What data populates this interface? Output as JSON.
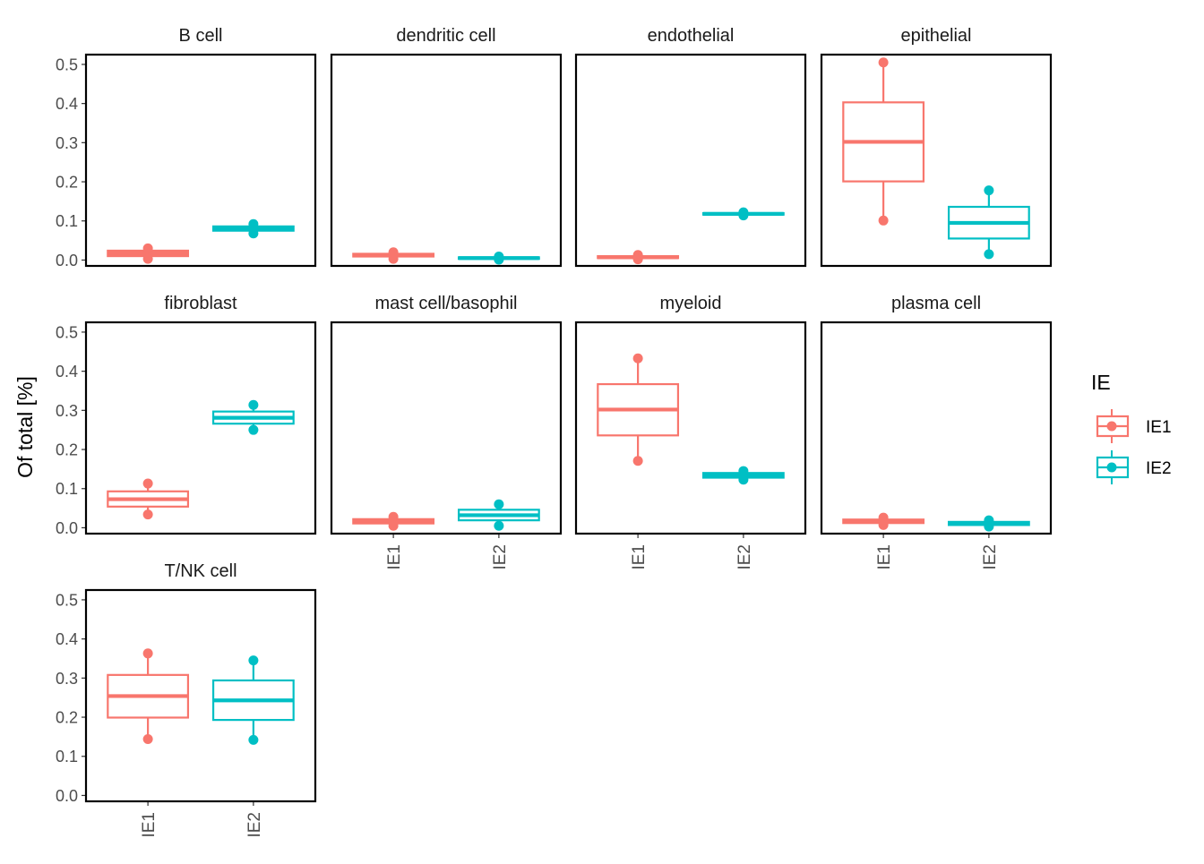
{
  "chart_data": {
    "type": "box",
    "ylabel": "Of total [%]",
    "xlabel": "",
    "categories": [
      "IE1",
      "IE2"
    ],
    "ylim": [
      -0.015,
      0.525
    ],
    "yticks": [
      0.0,
      0.1,
      0.2,
      0.3,
      0.4,
      0.5
    ],
    "ytick_labels": [
      "0.0",
      "0.1",
      "0.2",
      "0.3",
      "0.4",
      "0.5"
    ],
    "grid": false,
    "legend": {
      "title": "IE",
      "position": "right",
      "entries": [
        {
          "label": "IE1",
          "color": "#F8766D"
        },
        {
          "label": "IE2",
          "color": "#00BFC4"
        }
      ]
    },
    "panels": [
      {
        "title": "B cell",
        "boxes": [
          {
            "group": "IE1",
            "min": 0.003,
            "q1": 0.01,
            "median": 0.017,
            "q3": 0.024,
            "max": 0.03,
            "outliers": []
          },
          {
            "group": "IE2",
            "min": 0.068,
            "q1": 0.075,
            "median": 0.08,
            "q3": 0.086,
            "max": 0.092,
            "outliers": []
          }
        ]
      },
      {
        "title": "dendritic cell",
        "boxes": [
          {
            "group": "IE1",
            "min": 0.003,
            "q1": 0.009,
            "median": 0.012,
            "q3": 0.016,
            "max": 0.02,
            "outliers": []
          },
          {
            "group": "IE2",
            "min": 0.001,
            "q1": 0.003,
            "median": 0.005,
            "q3": 0.007,
            "max": 0.009,
            "outliers": []
          }
        ]
      },
      {
        "title": "endothelial",
        "boxes": [
          {
            "group": "IE1",
            "min": 0.002,
            "q1": 0.005,
            "median": 0.007,
            "q3": 0.01,
            "max": 0.013,
            "outliers": []
          },
          {
            "group": "IE2",
            "min": 0.114,
            "q1": 0.116,
            "median": 0.118,
            "q3": 0.12,
            "max": 0.122,
            "outliers": []
          }
        ]
      },
      {
        "title": "epithelial",
        "boxes": [
          {
            "group": "IE1",
            "min": 0.101,
            "q1": 0.201,
            "median": 0.302,
            "q3": 0.403,
            "max": 0.505,
            "outliers": []
          },
          {
            "group": "IE2",
            "min": 0.015,
            "q1": 0.055,
            "median": 0.095,
            "q3": 0.136,
            "max": 0.178,
            "outliers": []
          }
        ]
      },
      {
        "title": "fibroblast",
        "boxes": [
          {
            "group": "IE1",
            "min": 0.034,
            "q1": 0.054,
            "median": 0.073,
            "q3": 0.093,
            "max": 0.113,
            "outliers": []
          },
          {
            "group": "IE2",
            "min": 0.25,
            "q1": 0.266,
            "median": 0.281,
            "q3": 0.297,
            "max": 0.314,
            "outliers": []
          }
        ]
      },
      {
        "title": "mast cell/basophil",
        "boxes": [
          {
            "group": "IE1",
            "min": 0.005,
            "q1": 0.011,
            "median": 0.017,
            "q3": 0.022,
            "max": 0.028,
            "outliers": []
          },
          {
            "group": "IE2",
            "min": 0.005,
            "q1": 0.019,
            "median": 0.032,
            "q3": 0.046,
            "max": 0.06,
            "outliers": []
          }
        ]
      },
      {
        "title": "myeloid",
        "boxes": [
          {
            "group": "IE1",
            "min": 0.171,
            "q1": 0.236,
            "median": 0.302,
            "q3": 0.367,
            "max": 0.433,
            "outliers": []
          },
          {
            "group": "IE2",
            "min": 0.123,
            "q1": 0.128,
            "median": 0.134,
            "q3": 0.14,
            "max": 0.145,
            "outliers": []
          }
        ]
      },
      {
        "title": "plasma cell",
        "boxes": [
          {
            "group": "IE1",
            "min": 0.007,
            "q1": 0.012,
            "median": 0.016,
            "q3": 0.021,
            "max": 0.026,
            "outliers": []
          },
          {
            "group": "IE2",
            "min": 0.003,
            "q1": 0.007,
            "median": 0.011,
            "q3": 0.015,
            "max": 0.019,
            "outliers": []
          }
        ]
      },
      {
        "title": "T/NK cell",
        "boxes": [
          {
            "group": "IE1",
            "min": 0.144,
            "q1": 0.199,
            "median": 0.254,
            "q3": 0.308,
            "max": 0.363,
            "outliers": []
          },
          {
            "group": "IE2",
            "min": 0.142,
            "q1": 0.193,
            "median": 0.243,
            "q3": 0.294,
            "max": 0.345,
            "outliers": []
          }
        ]
      }
    ]
  }
}
